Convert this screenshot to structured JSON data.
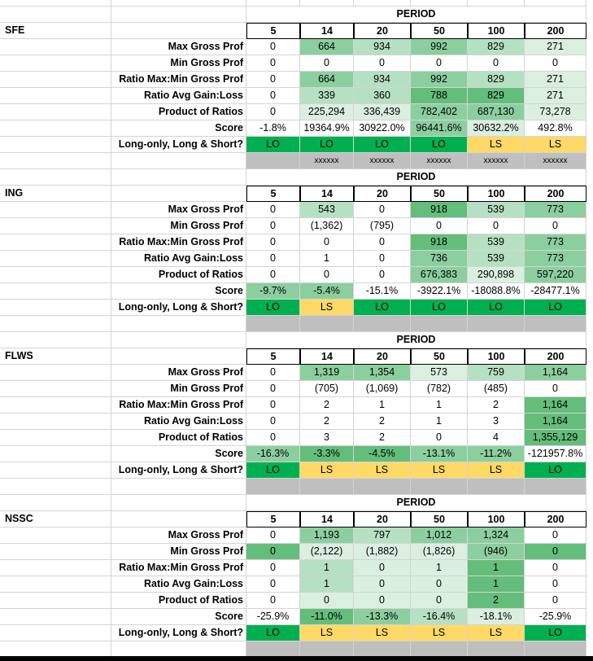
{
  "periods": [
    "5",
    "14",
    "20",
    "50",
    "100",
    "200"
  ],
  "period_title": "PERIOD",
  "colors": {
    "g_dark": "#63be7b",
    "g_mid": "#8ccf9f",
    "g_light": "#b6e0c2",
    "g_pale": "#dbefe1",
    "lo_green": "#00b050",
    "ls_yellow": "#ffd966",
    "gray": "#bfbfbf"
  },
  "sections": [
    {
      "ticker": "SFE",
      "rows": [
        {
          "label": "Max Gross Prof",
          "values": [
            "0",
            "664",
            "934",
            "992",
            "829",
            "271"
          ],
          "shade": [
            "",
            "mid",
            "light",
            "mid",
            "light",
            "pale"
          ]
        },
        {
          "label": "Min Gross Prof",
          "values": [
            "0",
            "0",
            "0",
            "0",
            "0",
            "0"
          ],
          "shade": [
            "",
            "",
            "",
            "",
            "",
            ""
          ]
        },
        {
          "label": "Ratio Max:Min Gross Prof",
          "values": [
            "0",
            "664",
            "934",
            "992",
            "829",
            "271"
          ],
          "shade": [
            "",
            "mid",
            "light",
            "mid",
            "light",
            "pale"
          ]
        },
        {
          "label": "Ratio Avg Gain:Loss",
          "values": [
            "0",
            "339",
            "360",
            "788",
            "829",
            "271"
          ],
          "shade": [
            "",
            "light",
            "light",
            "dark",
            "dark",
            "pale"
          ]
        },
        {
          "label": "Product of Ratios",
          "values": [
            "0",
            "225,294",
            "336,439",
            "782,402",
            "687,130",
            "73,278"
          ],
          "shade": [
            "",
            "pale",
            "pale",
            "mid",
            "mid",
            "pale"
          ]
        },
        {
          "label": "Score",
          "values": [
            "-1.8%",
            "19364.9%",
            "30922.0%",
            "96441.6%",
            "30632.2%",
            "492.8%"
          ],
          "shade": [
            "",
            "",
            "",
            "mid",
            "pale",
            ""
          ]
        },
        {
          "label": "Long-only, Long & Short?",
          "values": [
            "LO",
            "LO",
            "LO",
            "LO",
            "LS",
            "LS"
          ],
          "ls": true
        }
      ],
      "xxxxxx": [
        "xxxxxx",
        "xxxxxx",
        "xxxxxx",
        "xxxxxx",
        "xxxxxx"
      ]
    },
    {
      "ticker": "ING",
      "rows": [
        {
          "label": "Max Gross Prof",
          "values": [
            "0",
            "543",
            "0",
            "918",
            "539",
            "773"
          ],
          "shade": [
            "",
            "light",
            "",
            "dark",
            "light",
            "mid"
          ]
        },
        {
          "label": "Min Gross Prof",
          "values": [
            "0",
            "(1,362)",
            "(795)",
            "0",
            "0",
            "0"
          ],
          "shade": [
            "",
            "",
            "",
            "",
            "",
            ""
          ]
        },
        {
          "label": "Ratio Max:Min Gross Prof",
          "values": [
            "0",
            "0",
            "0",
            "918",
            "539",
            "773"
          ],
          "shade": [
            "",
            "",
            "",
            "dark",
            "light",
            "mid"
          ]
        },
        {
          "label": "Ratio Avg Gain:Loss",
          "values": [
            "0",
            "1",
            "0",
            "736",
            "539",
            "773"
          ],
          "shade": [
            "",
            "",
            "",
            "mid",
            "light",
            "mid"
          ]
        },
        {
          "label": "Product of Ratios",
          "values": [
            "0",
            "0",
            "0",
            "676,383",
            "290,898",
            "597,220"
          ],
          "shade": [
            "",
            "",
            "",
            "mid",
            "pale",
            "mid"
          ]
        },
        {
          "label": "Score",
          "values": [
            "-9.7%",
            "-5.4%",
            "-15.1%",
            "-3922.1%",
            "-18088.8%",
            "-28477.1%"
          ],
          "shade": [
            "mid",
            "mid",
            "",
            "",
            "",
            ""
          ]
        },
        {
          "label": "Long-only, Long & Short?",
          "values": [
            "LO",
            "LS",
            "LO",
            "LO",
            "LO",
            "LO"
          ],
          "ls": true
        }
      ]
    },
    {
      "ticker": "FLWS",
      "rows": [
        {
          "label": "Max Gross Prof",
          "values": [
            "0",
            "1,319",
            "1,354",
            "573",
            "759",
            "1,164"
          ],
          "shade": [
            "",
            "mid",
            "mid",
            "pale",
            "light",
            "mid"
          ]
        },
        {
          "label": "Min Gross Prof",
          "values": [
            "0",
            "(705)",
            "(1,069)",
            "(782)",
            "(485)",
            "0"
          ],
          "shade": [
            "",
            "",
            "",
            "",
            "",
            ""
          ]
        },
        {
          "label": "Ratio Max:Min Gross Prof",
          "values": [
            "0",
            "2",
            "1",
            "1",
            "2",
            "1,164"
          ],
          "shade": [
            "",
            "",
            "",
            "",
            "",
            "dark"
          ]
        },
        {
          "label": "Ratio Avg Gain:Loss",
          "values": [
            "0",
            "2",
            "2",
            "1",
            "3",
            "1,164"
          ],
          "shade": [
            "",
            "",
            "",
            "",
            "",
            "dark"
          ]
        },
        {
          "label": "Product of Ratios",
          "values": [
            "0",
            "3",
            "2",
            "0",
            "4",
            "1,355,129"
          ],
          "shade": [
            "",
            "",
            "",
            "",
            "",
            "dark"
          ]
        },
        {
          "label": "Score",
          "values": [
            "-16.3%",
            "-3.3%",
            "-4.5%",
            "-13.1%",
            "-11.2%",
            "-121957.8%"
          ],
          "shade": [
            "mid",
            "dark",
            "dark",
            "mid",
            "mid",
            ""
          ]
        },
        {
          "label": "Long-only, Long & Short?",
          "values": [
            "LO",
            "LS",
            "LS",
            "LS",
            "LS",
            "LO"
          ],
          "ls": true
        }
      ]
    },
    {
      "ticker": "NSSC",
      "rows": [
        {
          "label": "Max Gross Prof",
          "values": [
            "0",
            "1,193",
            "797",
            "1,012",
            "1,324",
            "0"
          ],
          "shade": [
            "",
            "mid",
            "light",
            "mid",
            "mid",
            ""
          ]
        },
        {
          "label": "Min Gross Prof",
          "values": [
            "0",
            "(2,122)",
            "(1,882)",
            "(1,826)",
            "(946)",
            "0"
          ],
          "shade": [
            "dark",
            "pale",
            "pale",
            "pale",
            "mid",
            "dark"
          ]
        },
        {
          "label": "Ratio Max:Min Gross Prof",
          "values": [
            "0",
            "1",
            "0",
            "1",
            "1",
            "0"
          ],
          "shade": [
            "",
            "light",
            "pale",
            "pale",
            "dark",
            ""
          ]
        },
        {
          "label": "Ratio Avg Gain:Loss",
          "values": [
            "0",
            "1",
            "0",
            "0",
            "1",
            "0"
          ],
          "shade": [
            "",
            "light",
            "pale",
            "pale",
            "dark",
            ""
          ]
        },
        {
          "label": "Product of Ratios",
          "values": [
            "0",
            "0",
            "0",
            "0",
            "2",
            "0"
          ],
          "shade": [
            "",
            "pale",
            "pale",
            "pale",
            "dark",
            ""
          ]
        },
        {
          "label": "Score",
          "values": [
            "-25.9%",
            "-11.0%",
            "-13.3%",
            "-16.4%",
            "-18.1%",
            "-25.9%"
          ],
          "shade": [
            "",
            "dark",
            "mid",
            "light",
            "pale",
            ""
          ]
        },
        {
          "label": "Long-only, Long & Short?",
          "values": [
            "LO",
            "LS",
            "LS",
            "LS",
            "LS",
            "LO"
          ],
          "ls": true
        }
      ]
    }
  ]
}
